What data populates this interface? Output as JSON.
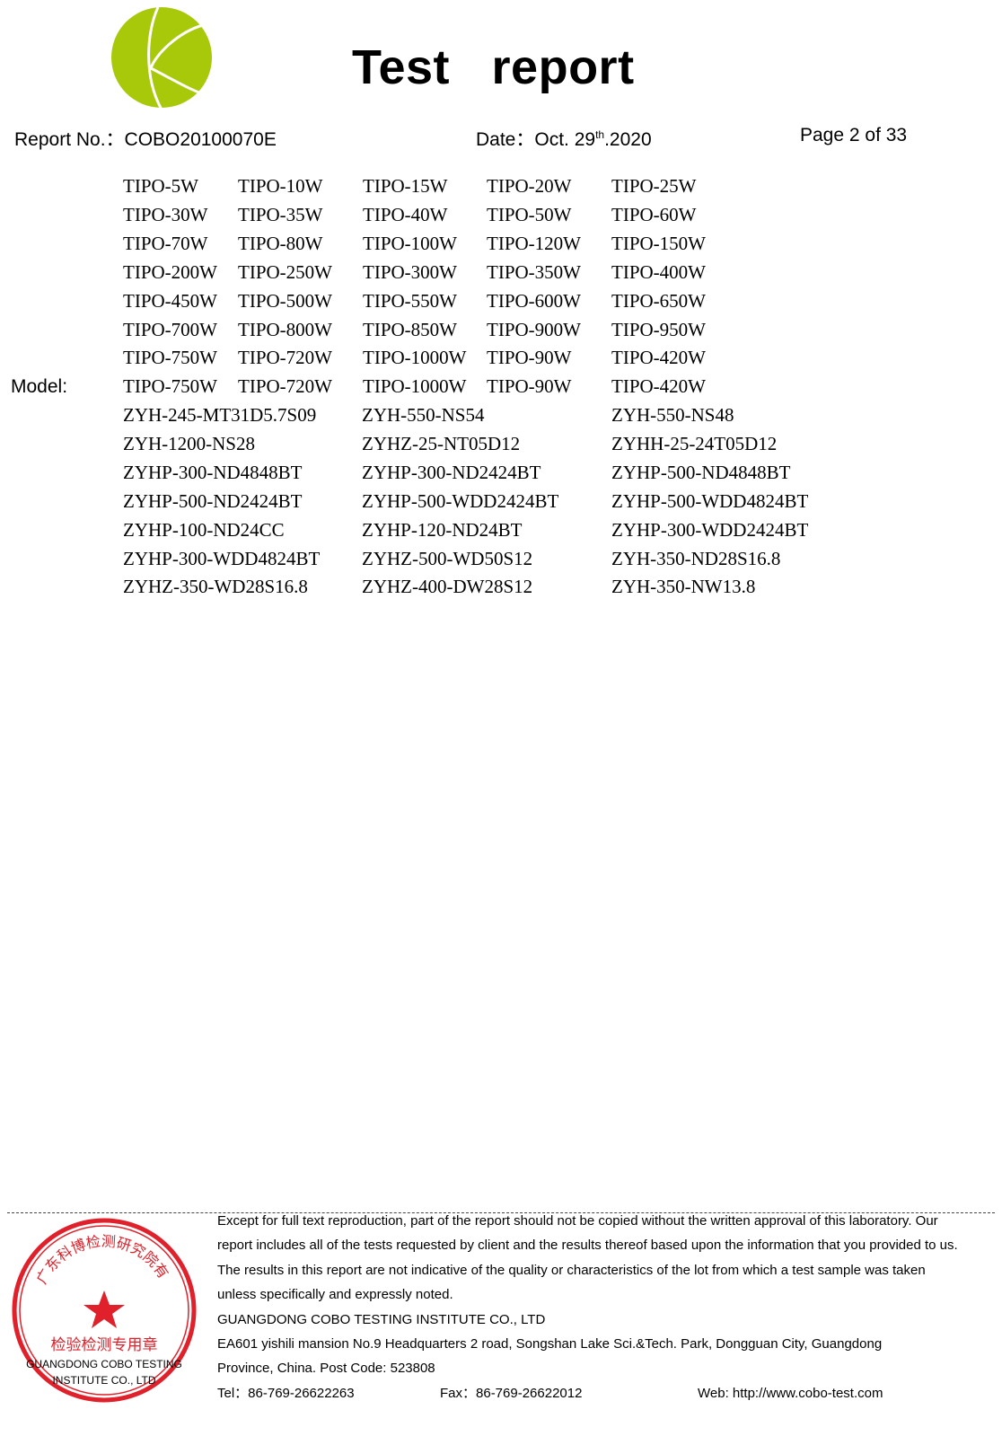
{
  "header": {
    "logo": "COBO K logo",
    "title": "Test   report",
    "report_no": "Report No.：COBO20100070E",
    "date_prefix": "Date：Oct. 29",
    "date_sup": "th",
    "date_suffix": ".2020",
    "page": "Page 2 of 33",
    "logo_color": "#a8c80a"
  },
  "model": {
    "label": "Model:",
    "tipo_rows": [
      [
        "TIPO-5W",
        "TIPO-10W",
        "TIPO-15W",
        "TIPO-20W",
        "TIPO-25W"
      ],
      [
        "TIPO-30W",
        "TIPO-35W",
        "TIPO-40W",
        "TIPO-50W",
        "TIPO-60W"
      ],
      [
        "TIPO-70W",
        "TIPO-80W",
        "TIPO-100W",
        "TIPO-120W",
        "TIPO-150W"
      ],
      [
        "TIPO-200W",
        "TIPO-250W",
        "TIPO-300W",
        "TIPO-350W",
        "TIPO-400W"
      ],
      [
        "TIPO-450W",
        "TIPO-500W",
        "TIPO-550W",
        "TIPO-600W",
        "TIPO-650W"
      ],
      [
        "TIPO-700W",
        "TIPO-800W",
        "TIPO-850W",
        "TIPO-900W",
        "TIPO-950W"
      ],
      [
        "TIPO-750W",
        "TIPO-720W",
        "TIPO-1000W",
        "TIPO-90W",
        "TIPO-420W"
      ],
      [
        "TIPO-750W",
        "TIPO-720W",
        "TIPO-1000W",
        "TIPO-90W",
        "TIPO-420W"
      ]
    ],
    "zyh_rows": [
      [
        "ZYH-245-MT31D5.7S09",
        "ZYH-550-NS54",
        "ZYH-550-NS48"
      ],
      [
        "ZYH-1200-NS28",
        "ZYHZ-25-NT05D12",
        "ZYHH-25-24T05D12"
      ],
      [
        "ZYHP-300-ND4848BT",
        "ZYHP-300-ND2424BT",
        "ZYHP-500-ND4848BT"
      ],
      [
        "ZYHP-500-ND2424BT",
        "ZYHP-500-WDD2424BT",
        "ZYHP-500-WDD4824BT"
      ],
      [
        "ZYHP-100-ND24CC",
        "ZYHP-120-ND24BT",
        "ZYHP-300-WDD2424BT"
      ],
      [
        "ZYHP-300-WDD4824BT",
        "ZYHZ-500-WD50S12",
        "ZYH-350-ND28S16.8"
      ],
      [
        "ZYHZ-350-WD28S16.8",
        "ZYHZ-400-DW28S12",
        "ZYH-350-NW13.8"
      ]
    ]
  },
  "footer": {
    "lines": [
      "Except for full text reproduction, part of the report should not be copied without the written approval of this laboratory. Our",
      "report includes all of the tests requested by client and the results thereof based upon the information that you provided to us.",
      "The results in this report are not indicative of the quality or characteristics of the lot from which a test sample was taken",
      "unless specifically and expressly noted.",
      "GUANGDONG COBO TESTING INSTITUTE CO., LTD",
      "EA601 yishili mansion No.9 Headquarters 2 road, Songshan Lake Sci.&Tech. Park, Dongguan City, Guangdong",
      "Province, China. Post Code: 523808"
    ],
    "tel": "Tel：86-769-26622263",
    "fax": "Fax：86-769-26622012",
    "web": "Web: http://www.cobo-test.com",
    "stamp": {
      "ring_text": "广东科博检测研究院有限公司",
      "center_text": "检验检测专用章",
      "bottom_ring": "GUANGDONG COBO TESTING INSTITUTE CO.,LTD",
      "overlay_line1": "GUANGDONG COBO TESTING",
      "overlay_line2": "INSTITUTE CO., LTD",
      "color": "#e0202a"
    }
  }
}
